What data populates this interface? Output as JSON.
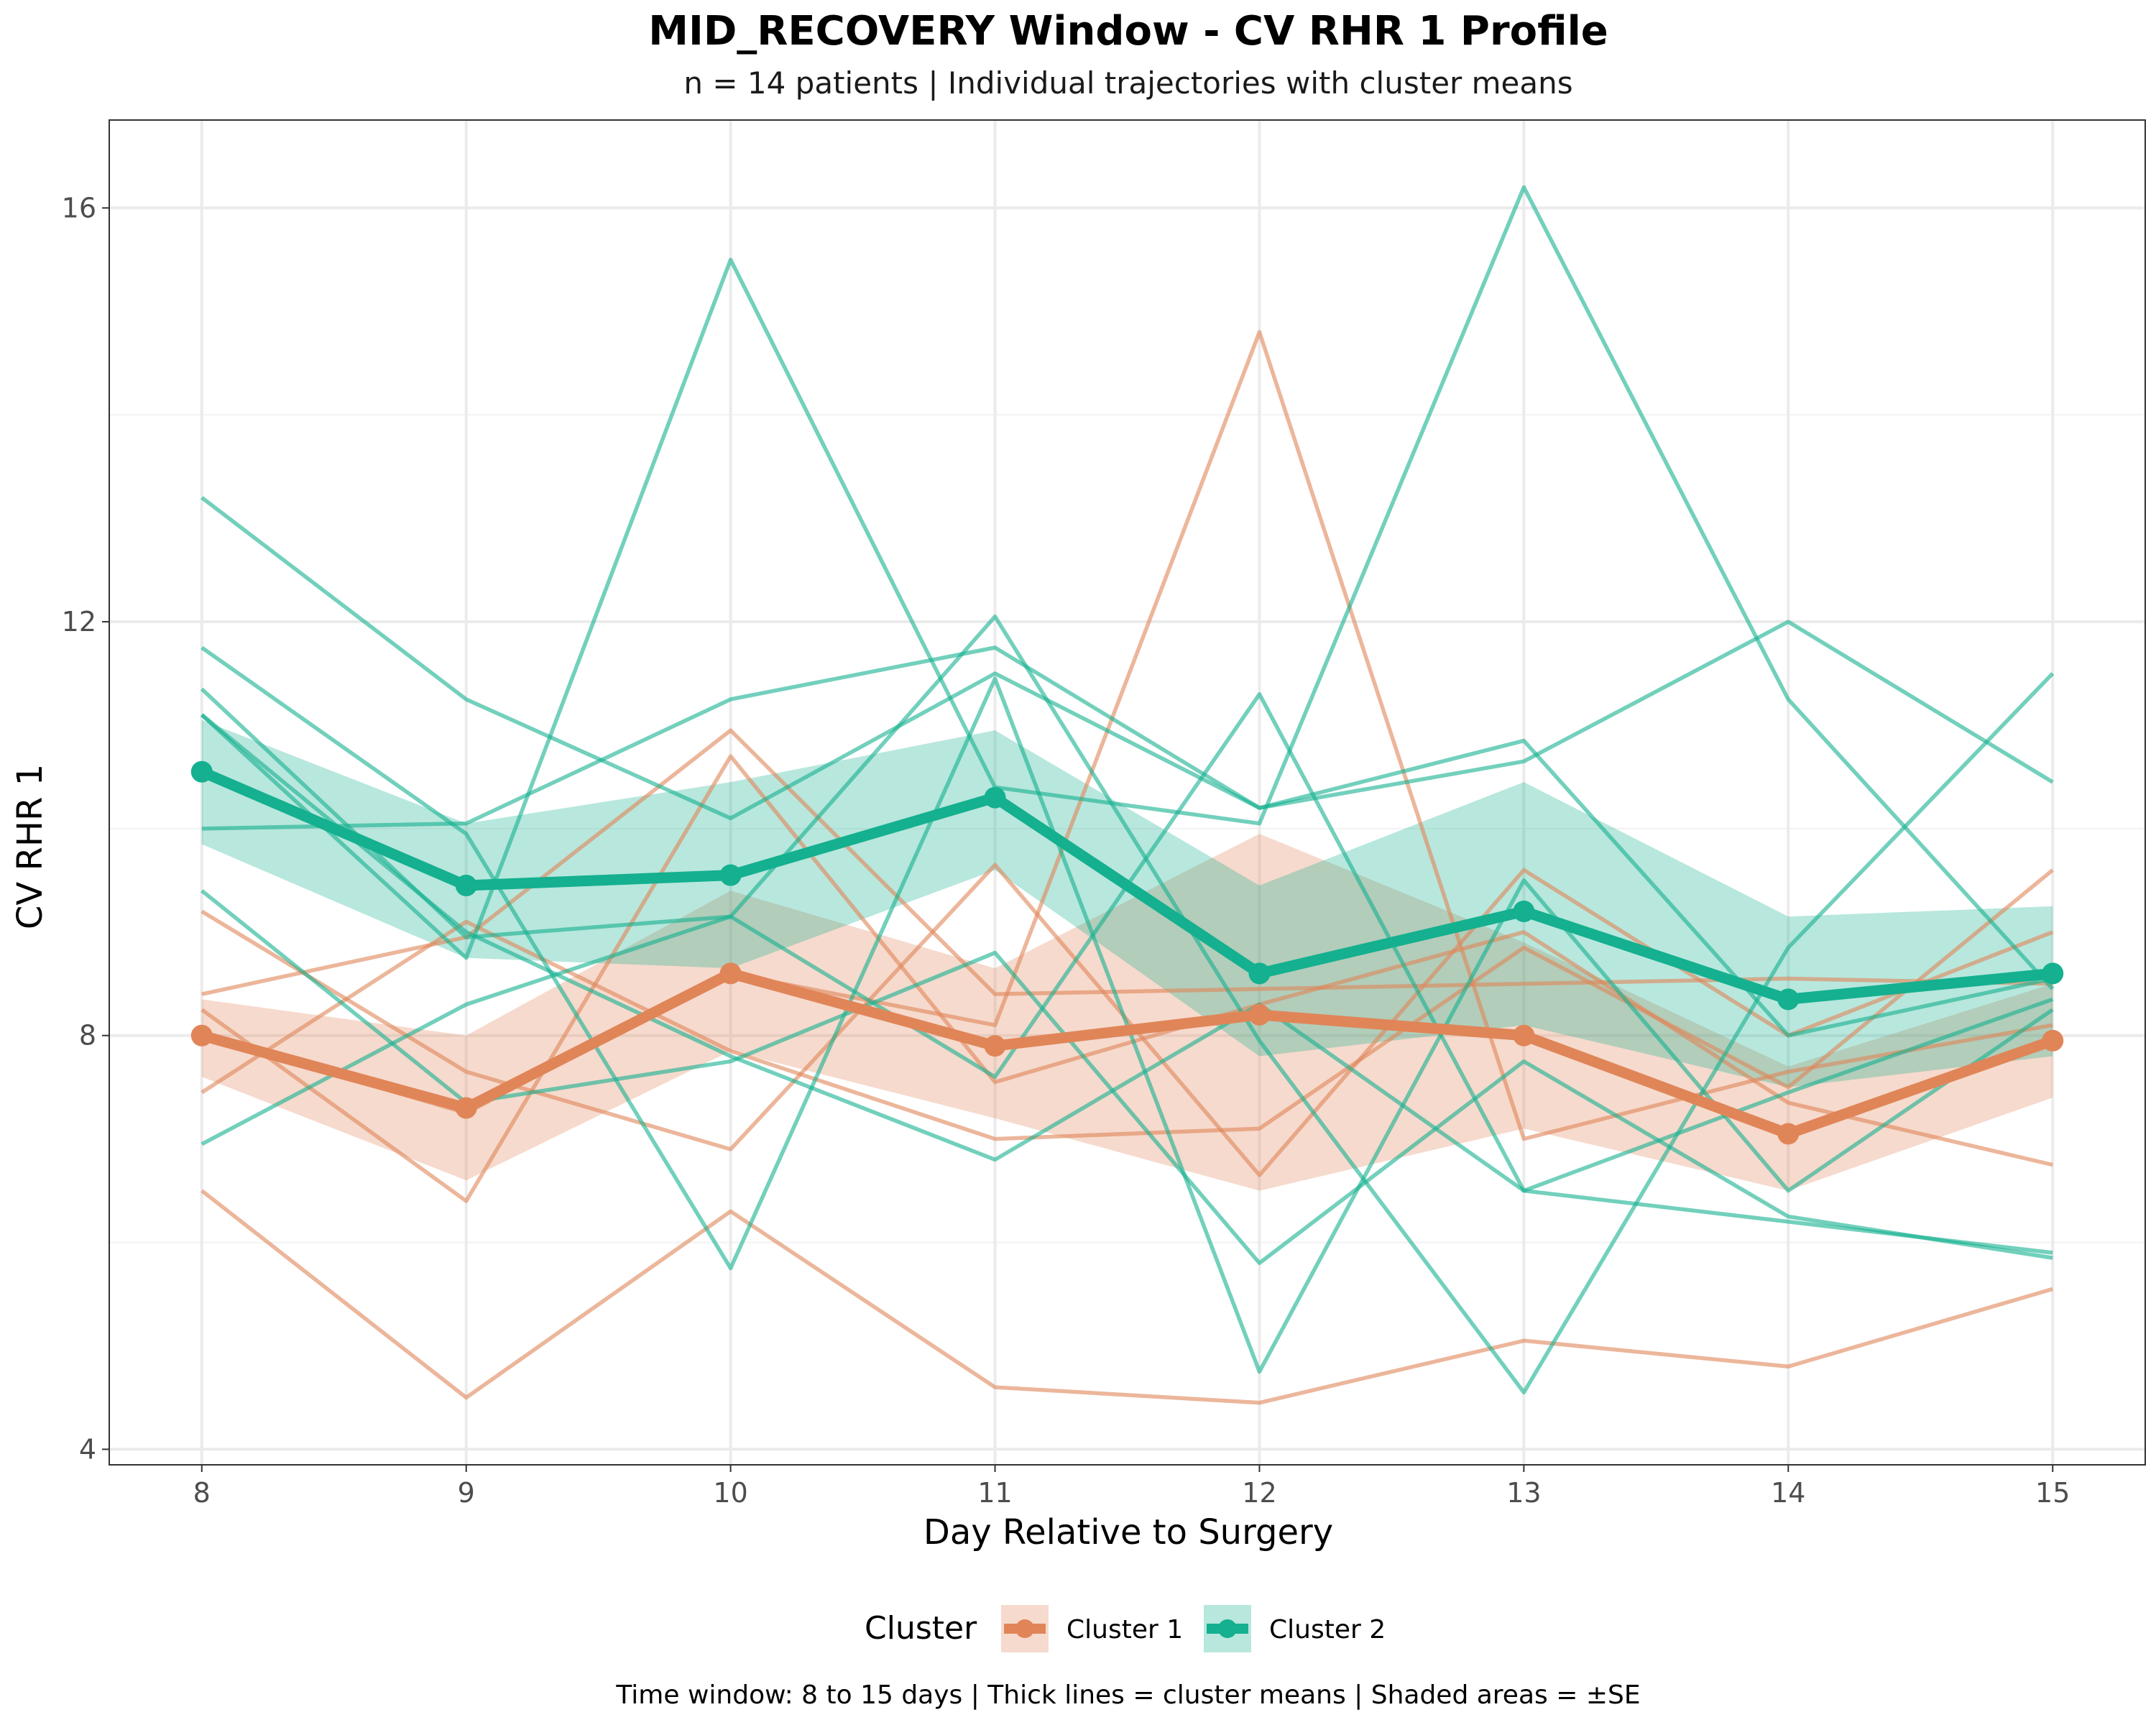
{
  "chart_data": {
    "type": "line",
    "title": "MID_RECOVERY Window - CV RHR 1 Profile",
    "subtitle": "n = 14 patients | Individual trajectories with cluster means",
    "xlabel": "Day Relative to Surgery",
    "ylabel": "CV RHR 1",
    "caption": "Time window: 8 to 15 days | Thick lines = cluster means | Shaded areas = ±SE",
    "x": [
      8,
      9,
      10,
      11,
      12,
      13,
      14,
      15
    ],
    "x_ticks": [
      "8",
      "9",
      "10",
      "11",
      "12",
      "13",
      "14",
      "15"
    ],
    "y_ticks": [
      "4",
      "8",
      "12",
      "16"
    ],
    "y_tick_values": [
      4,
      8,
      12,
      16
    ],
    "xlim": [
      7.65,
      15.35
    ],
    "ylim": [
      3.85,
      16.85
    ],
    "grid": true,
    "legend": {
      "title": "Cluster",
      "position": "bottom",
      "entries": [
        "Cluster 1",
        "Cluster 2"
      ]
    },
    "colors": {
      "Cluster 1": "#E08558",
      "Cluster 2": "#14B08F"
    },
    "means": [
      {
        "name": "Cluster 1",
        "values": [
          8.0,
          7.3,
          8.6,
          7.9,
          8.2,
          8.0,
          7.05,
          7.95
        ],
        "se_lower": [
          7.6,
          6.6,
          7.85,
          7.2,
          6.5,
          7.1,
          6.5,
          7.4
        ],
        "se_upper": [
          8.35,
          8.0,
          9.4,
          8.65,
          9.95,
          8.9,
          7.7,
          8.5
        ]
      },
      {
        "name": "Cluster 2",
        "values": [
          10.55,
          9.45,
          9.55,
          10.3,
          8.6,
          9.2,
          8.35,
          8.6
        ],
        "se_lower": [
          9.85,
          8.75,
          8.65,
          9.6,
          7.8,
          8.1,
          7.5,
          7.8
        ],
        "se_upper": [
          11.05,
          10.05,
          10.45,
          10.95,
          9.45,
          10.45,
          9.15,
          9.25
        ]
      }
    ],
    "individuals": [
      {
        "cluster": "Cluster 1",
        "values": [
          8.4,
          8.95,
          10.95,
          8.4,
          8.45,
          8.5,
          8.55,
          8.5
        ]
      },
      {
        "cluster": "Cluster 1",
        "values": [
          9.2,
          7.65,
          6.9,
          9.65,
          6.65,
          9.6,
          8.0,
          9.0
        ]
      },
      {
        "cluster": "Cluster 1",
        "values": [
          8.25,
          6.4,
          10.7,
          7.55,
          8.3,
          9.0,
          7.35,
          6.75
        ]
      },
      {
        "cluster": "Cluster 1",
        "values": [
          7.45,
          9.1,
          7.85,
          7.0,
          7.1,
          8.85,
          7.5,
          9.6
        ]
      },
      {
        "cluster": "Cluster 1",
        "values": [
          6.5,
          4.5,
          6.3,
          4.6,
          4.45,
          5.05,
          4.8,
          5.55
        ]
      },
      {
        "cluster": "Cluster 1",
        "values": [
          8.0,
          7.25,
          8.6,
          8.1,
          14.8,
          7.0,
          7.65,
          8.1
        ]
      },
      {
        "cluster": "Cluster 2",
        "values": [
          13.2,
          11.25,
          10.1,
          11.5,
          10.2,
          10.85,
          8.0,
          8.55
        ]
      },
      {
        "cluster": "Cluster 2",
        "values": [
          10.0,
          10.05,
          11.25,
          11.75,
          10.2,
          10.65,
          12.0,
          10.45
        ]
      },
      {
        "cluster": "Cluster 2",
        "values": [
          11.1,
          8.75,
          15.5,
          10.4,
          10.05,
          16.2,
          11.25,
          8.45
        ]
      },
      {
        "cluster": "Cluster 2",
        "values": [
          11.35,
          8.95,
          9.15,
          12.05,
          7.95,
          4.55,
          8.85,
          11.5
        ]
      },
      {
        "cluster": "Cluster 2",
        "values": [
          11.75,
          9.95,
          5.75,
          11.45,
          4.75,
          9.5,
          6.5,
          8.25
        ]
      },
      {
        "cluster": "Cluster 2",
        "values": [
          9.4,
          7.35,
          7.75,
          8.8,
          5.8,
          7.75,
          6.25,
          5.85
        ]
      },
      {
        "cluster": "Cluster 2",
        "values": [
          6.95,
          8.3,
          9.15,
          7.6,
          11.3,
          6.5,
          6.2,
          5.9
        ]
      },
      {
        "cluster": "Cluster 2",
        "values": [
          11.1,
          9.0,
          7.8,
          6.8,
          8.3,
          6.5,
          7.45,
          8.35
        ]
      }
    ]
  }
}
